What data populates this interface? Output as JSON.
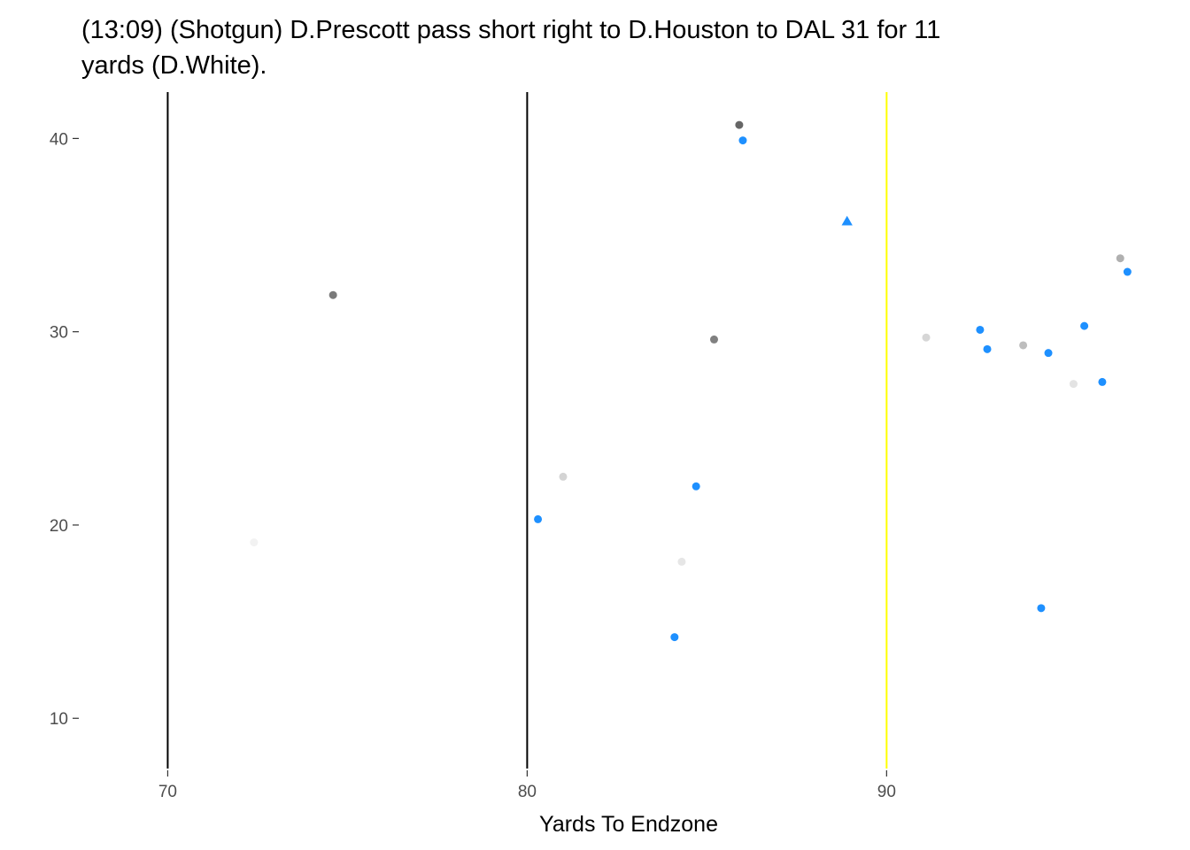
{
  "chart_data": {
    "type": "scatter",
    "title": "(13:09) (Shotgun) D.Prescott pass short right to D.Houston to DAL 31 for 11 yards (D.White).",
    "title_lines": [
      "(13:09) (Shotgun) D.Prescott pass short right to D.Houston to DAL 31 for 11",
      "yards (D.White)."
    ],
    "xlabel": "Yards To Endzone",
    "ylabel": "",
    "xlim": [
      67.6,
      97.8
    ],
    "ylim": [
      7.4,
      42.4
    ],
    "x_ticks": [
      70,
      80,
      90
    ],
    "y_ticks": [
      10,
      20,
      30,
      40
    ],
    "grid": false,
    "vertical_lines": [
      {
        "x": 70,
        "color": "#000000",
        "meaning": "boundary"
      },
      {
        "x": 80,
        "color": "#000000",
        "meaning": "boundary"
      },
      {
        "x": 90,
        "color": "#ffff00",
        "meaning": "first down marker"
      }
    ],
    "series": [
      {
        "team": "offense",
        "color": "#1e90ff",
        "points": [
          {
            "x": 86.0,
            "y": 39.9
          },
          {
            "x": 92.6,
            "y": 30.1
          },
          {
            "x": 92.8,
            "y": 29.1
          },
          {
            "x": 94.5,
            "y": 28.9
          },
          {
            "x": 95.5,
            "y": 30.3
          },
          {
            "x": 96.0,
            "y": 27.4
          },
          {
            "x": 96.7,
            "y": 33.1
          },
          {
            "x": 84.7,
            "y": 22.0
          },
          {
            "x": 80.3,
            "y": 20.3
          },
          {
            "x": 84.1,
            "y": 14.2
          },
          {
            "x": 94.3,
            "y": 15.7
          }
        ]
      },
      {
        "team": "ball",
        "color": "#1e90ff",
        "shape": "triangle",
        "points": [
          {
            "x": 88.9,
            "y": 35.7
          }
        ]
      },
      {
        "team": "defense",
        "color": "#808080",
        "points": [
          {
            "x": 85.9,
            "y": 40.7,
            "shade": "#666666"
          },
          {
            "x": 74.6,
            "y": 31.9,
            "shade": "#7a7a7a"
          },
          {
            "x": 85.2,
            "y": 29.6,
            "shade": "#808080"
          },
          {
            "x": 96.5,
            "y": 33.8,
            "shade": "#b0b0b0"
          },
          {
            "x": 93.8,
            "y": 29.3,
            "shade": "#bdbdbd"
          },
          {
            "x": 91.1,
            "y": 29.7,
            "shade": "#d6d6d6"
          },
          {
            "x": 95.2,
            "y": 27.3,
            "shade": "#e3e3e3"
          },
          {
            "x": 81.0,
            "y": 22.5,
            "shade": "#d4d4d4"
          },
          {
            "x": 84.3,
            "y": 18.1,
            "shade": "#e6e6e6"
          },
          {
            "x": 72.4,
            "y": 19.1,
            "shade": "#f2f2f2"
          }
        ]
      }
    ]
  }
}
